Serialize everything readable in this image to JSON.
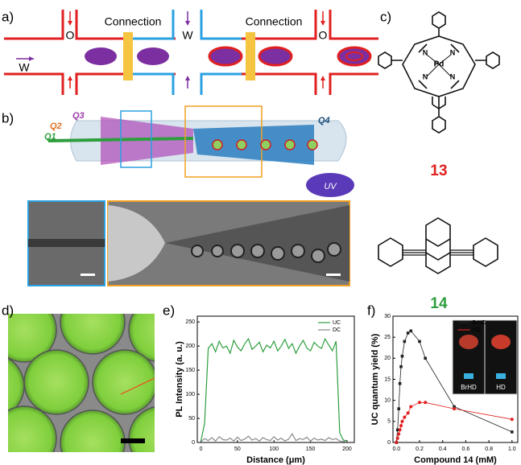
{
  "panel_labels": [
    "a)",
    "b)",
    "c)",
    "d)",
    "e)",
    "f)"
  ],
  "panel_a": {
    "connection_labels": [
      "Connection",
      "Connection"
    ],
    "phase_labels": [
      "W",
      "O",
      "W",
      "O"
    ]
  },
  "panel_b": {
    "flow_labels": [
      "Q1",
      "Q2",
      "Q3",
      "Q4"
    ],
    "uv_label": "UV"
  },
  "panel_c": {
    "compound_13": {
      "atoms": [
        "Pd",
        "N",
        "N",
        "N",
        "N"
      ],
      "label": "13"
    },
    "compound_14": {
      "label": "14"
    }
  },
  "panel_f_inset": [
    "BrHD",
    "HD"
  ],
  "chart_data": [
    {
      "type": "line",
      "xlabel": "Distance (μm)",
      "ylabel": "PL Intensity (a. u.)",
      "x": [
        0,
        5,
        10,
        15,
        20,
        25,
        30,
        35,
        40,
        45,
        50,
        55,
        60,
        65,
        70,
        75,
        80,
        85,
        90,
        95,
        100,
        105,
        110,
        115,
        120,
        125,
        130,
        135,
        140,
        145,
        150,
        155,
        160,
        165,
        170,
        175,
        180,
        185,
        190,
        195,
        200
      ],
      "series": [
        {
          "name": "UC",
          "color": "#2e9e3e",
          "values": [
            3,
            40,
            195,
            205,
            188,
            210,
            196,
            200,
            185,
            212,
            198,
            190,
            205,
            215,
            193,
            200,
            208,
            188,
            202,
            196,
            210,
            190,
            200,
            214,
            195,
            205,
            185,
            200,
            212,
            196,
            190,
            208,
            200,
            195,
            215,
            202,
            190,
            210,
            20,
            5,
            3
          ]
        },
        {
          "name": "DC",
          "color": "#8a8a8a",
          "values": [
            2,
            8,
            4,
            10,
            3,
            12,
            6,
            5,
            9,
            3,
            11,
            4,
            7,
            13,
            5,
            8,
            3,
            10,
            6,
            4,
            12,
            5,
            9,
            3,
            7,
            18,
            4,
            8,
            6,
            11,
            3,
            9,
            5,
            7,
            4,
            10,
            6,
            8,
            3,
            2,
            1
          ]
        }
      ],
      "xlim": [
        -5,
        210
      ],
      "ylim": [
        0,
        262
      ],
      "xticks": [
        0,
        50,
        100,
        150,
        200
      ],
      "yticks": [
        0,
        50,
        100,
        150,
        200,
        250
      ],
      "legend": "top-right"
    },
    {
      "type": "line",
      "xlabel": "Compound 14  (mM)",
      "ylabel": "UC quantum yield (%)",
      "x": [
        0,
        0.01,
        0.02,
        0.03,
        0.04,
        0.05,
        0.07,
        0.1,
        0.125,
        0.2,
        0.25,
        0.5,
        1.0
      ],
      "series": [
        {
          "name": "BrHD",
          "color": "#222222",
          "values": [
            0,
            3,
            8,
            14,
            18,
            20.5,
            24,
            26,
            26.5,
            24,
            20,
            8.5,
            2.5
          ]
        },
        {
          "name": "HD",
          "color": "#e02020",
          "values": [
            0,
            1,
            2,
            3,
            4,
            5,
            6,
            7,
            8.5,
            9.5,
            9.5,
            8,
            5.5
          ]
        }
      ],
      "xlim": [
        -0.03,
        1.05
      ],
      "ylim": [
        0,
        30
      ],
      "xticks": [
        {
          "value": 0,
          "label": "0.0"
        },
        0.2,
        0.4,
        0.6,
        0.8,
        {
          "value": 1,
          "label": "1.0"
        }
      ],
      "yticks": [
        0,
        5,
        10,
        15,
        20,
        25,
        30
      ],
      "legend": "top-left"
    }
  ]
}
